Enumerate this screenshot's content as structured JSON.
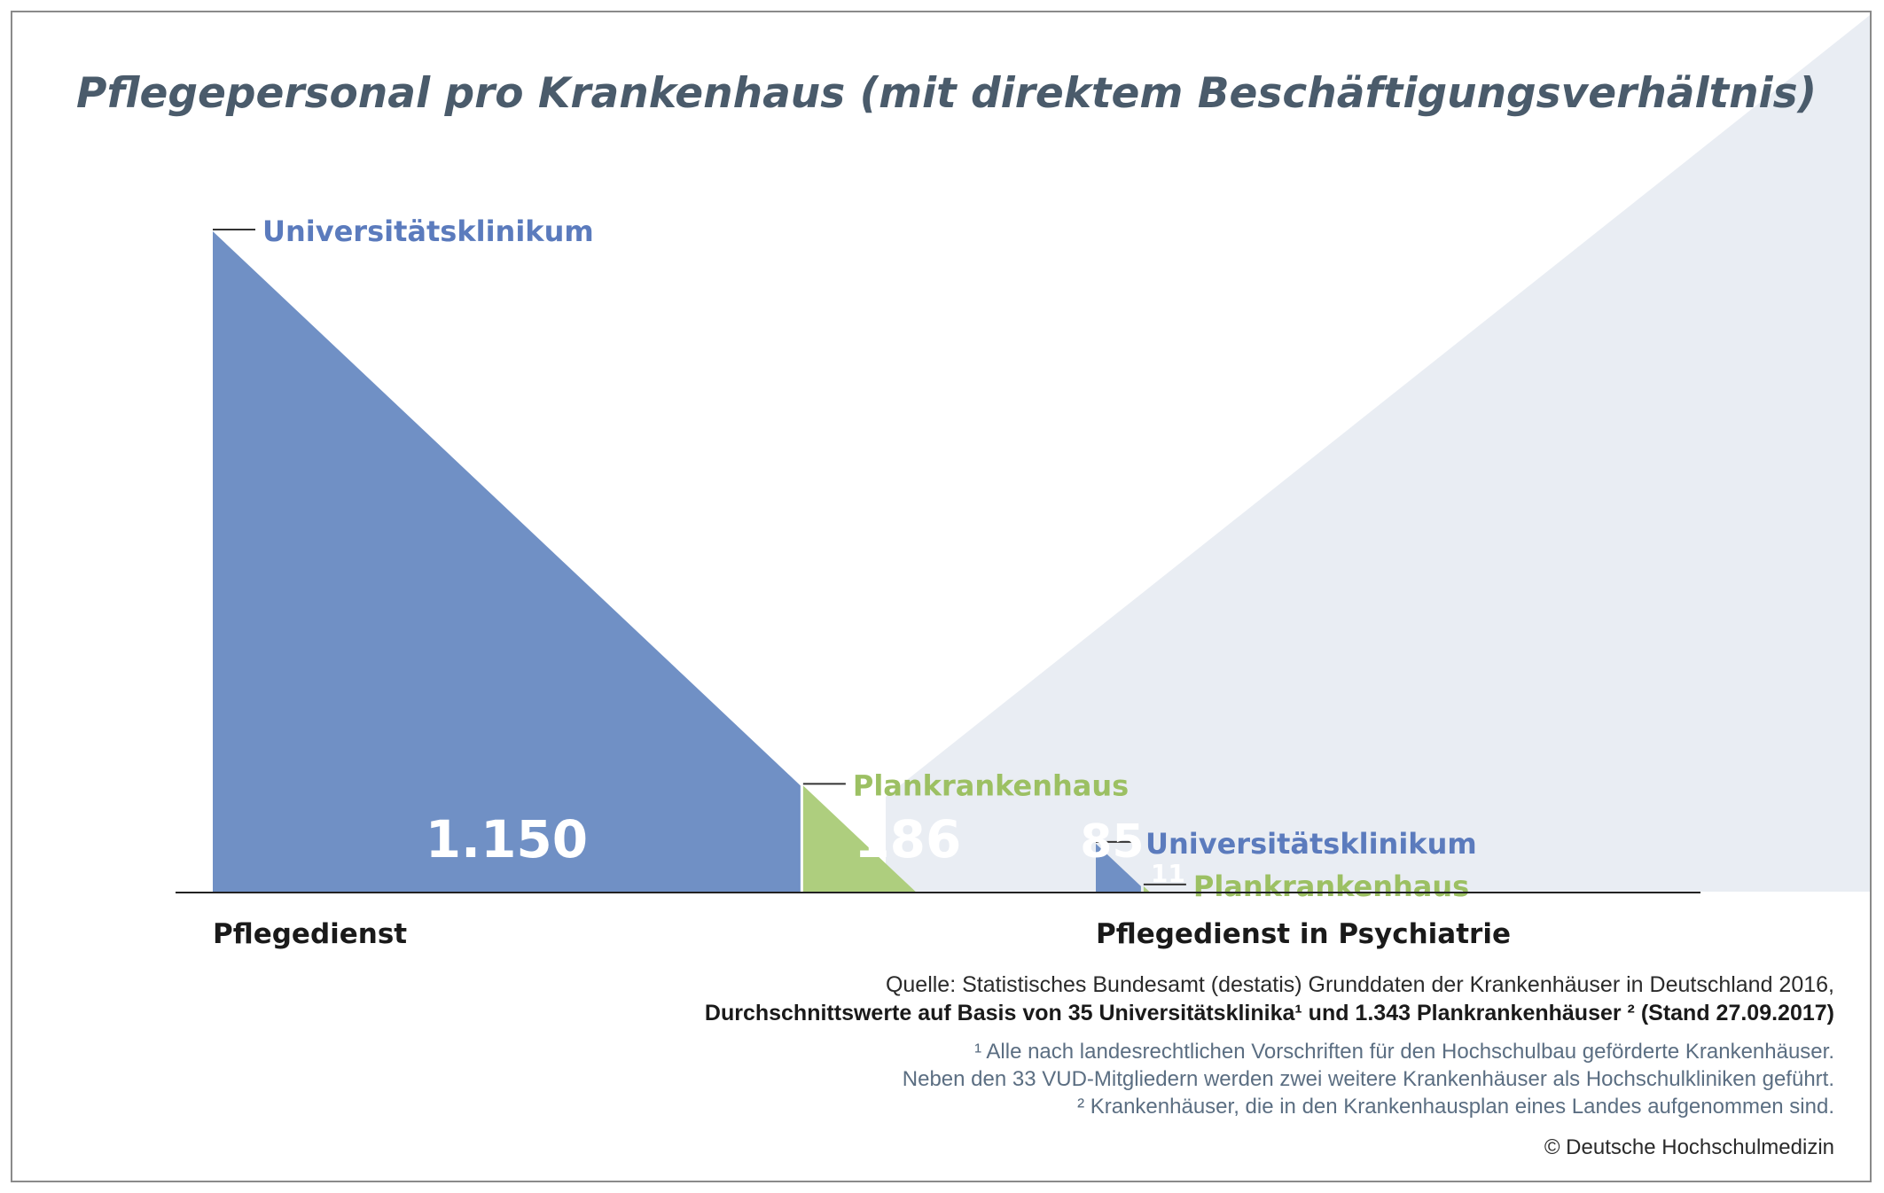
{
  "title": "Pflegepersonal pro Krankenhaus (mit direktem Beschäftigungsverhältnis)",
  "colors": {
    "uni": "#7090c5",
    "plan": "#aece7e",
    "background_shape": "#e9edf3",
    "uni_label": "#5b7bbd",
    "plan_label": "#9cc063",
    "axis": "#222222",
    "title": "#4a5b6b"
  },
  "chart_data": {
    "type": "bar",
    "shape": "triangle",
    "categories": [
      "Pflegedienst",
      "Pflegedienst in Psychiatrie"
    ],
    "series": [
      {
        "name": "Universitätsklinikum",
        "values": [
          1150,
          85
        ]
      },
      {
        "name": "Plankrankenhaus",
        "values": [
          186,
          11
        ]
      }
    ],
    "value_labels": [
      [
        "1.150",
        "186"
      ],
      [
        "85",
        "11"
      ]
    ],
    "ylim": [
      0,
      1150
    ],
    "grid": false,
    "legend": "inline labels"
  },
  "source": {
    "line1": "Quelle: Statistisches Bundesamt (destatis) Grunddaten der Krankenhäuser in Deutschland 2016,",
    "line2": "Durchschnittswerte auf Basis von 35 Universitätsklinika¹ und 1.343 Plankrankenhäuser ² (Stand 27.09.2017)"
  },
  "footnotes": [
    "¹ Alle nach landesrechtlichen Vorschriften für den Hochschulbau geförderte Krankenhäuser.",
    "Neben den 33 VUD-Mitgliedern werden zwei weitere Krankenhäuser als Hochschulkliniken geführt.",
    "² Krankenhäuser, die in den Krankenhausplan eines Landes aufgenommen sind."
  ],
  "copyright": "© Deutsche Hochschulmedizin"
}
